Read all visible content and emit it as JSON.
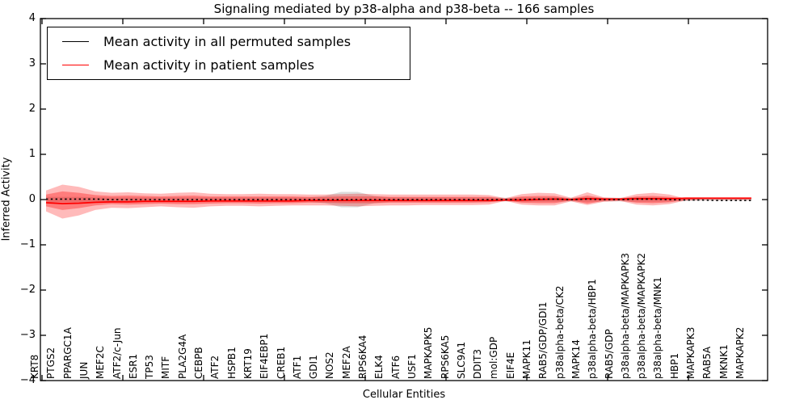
{
  "title": "Signaling mediated by p38-alpha and p38-beta -- 166 samples",
  "axes": {
    "xlabel": "Cellular Entities",
    "ylabel": "Inferred Activity",
    "ytick_values": [
      4,
      3,
      2,
      1,
      0,
      -1,
      -2,
      -3,
      -4
    ],
    "ytick_labels": [
      "4",
      "3",
      "2",
      "1",
      "0",
      "−1",
      "−2",
      "−3",
      "−4"
    ]
  },
  "legend": {
    "position": "upper left",
    "items": [
      {
        "label": "Mean activity in all permuted samples",
        "color": "#000000"
      },
      {
        "label": "Mean activity in patient samples",
        "color": "#ff0000"
      }
    ]
  },
  "colors": {
    "patient_line": "#ff0000",
    "permuted_line": "#000000",
    "patient_band": "#ff0000",
    "permuted_band": "#999999",
    "axis": "#000000",
    "background": "#ffffff"
  },
  "chart_data": {
    "type": "line",
    "title": "Signaling mediated by p38-alpha and p38-beta -- 166 samples",
    "xlabel": "Cellular Entities",
    "ylabel": "Inferred Activity",
    "ylim": [
      -4,
      4
    ],
    "grid": false,
    "legend_position": "upper left",
    "categories": [
      "KRT8",
      "PTGS2",
      "PPARGC1A",
      "JUN",
      "MEF2C",
      "ATF2/c-Jun",
      "ESR1",
      "TP53",
      "MITF",
      "PLA2G4A",
      "CEBPB",
      "ATF2",
      "HSPB1",
      "KRT19",
      "EIF4EBP1",
      "CREB1",
      "ATF1",
      "GDI1",
      "NOS2",
      "MEF2A",
      "RPS6KA4",
      "ELK4",
      "ATF6",
      "USF1",
      "MAPKAPK5",
      "RPS6KA5",
      "SLC9A1",
      "DDIT3",
      "mol:GDP",
      "EIF4E",
      "MAPK11",
      "RAB5/GDP/GDI1",
      "p38alpha-beta/CK2",
      "MAPK14",
      "p38alpha-beta/HBP1",
      "RAB5/GDP",
      "p38alpha-beta/MAPKAPK3",
      "p38alpha-beta/MAPKAPK2",
      "p38alpha-beta/MNK1",
      "HBP1",
      "MAPKAPK3",
      "RAB5A",
      "MKNK1",
      "MAPKAPK2"
    ],
    "series": [
      {
        "name": "Mean activity in all permuted samples",
        "color": "#000000",
        "style": "dotted",
        "values": [
          0.01,
          0.01,
          0.01,
          0.01,
          0.0,
          0.0,
          0.0,
          0.0,
          0.0,
          0.0,
          0.0,
          0.0,
          0.0,
          0.0,
          0.0,
          0.0,
          0.0,
          0.0,
          0.0,
          0.0,
          0.0,
          0.0,
          0.0,
          0.0,
          0.0,
          0.0,
          0.0,
          0.0,
          0.0,
          0.0,
          0.01,
          0.01,
          0.0,
          0.01,
          0.0,
          0.0,
          0.01,
          0.01,
          0.0,
          -0.01,
          -0.01,
          -0.02,
          -0.02,
          -0.02
        ]
      },
      {
        "name": "Mean activity in patient samples",
        "color": "#ff0000",
        "style": "solid",
        "values": [
          -0.07,
          -0.09,
          -0.08,
          -0.06,
          -0.05,
          -0.05,
          -0.04,
          -0.04,
          -0.04,
          -0.04,
          -0.03,
          -0.03,
          -0.03,
          -0.03,
          -0.03,
          -0.03,
          -0.02,
          -0.02,
          -0.02,
          -0.02,
          -0.02,
          -0.02,
          -0.02,
          -0.02,
          -0.02,
          -0.02,
          -0.02,
          -0.02,
          -0.01,
          -0.01,
          0.0,
          0.01,
          0.0,
          0.02,
          0.01,
          0.01,
          0.02,
          0.02,
          0.02,
          0.03,
          0.03,
          0.03,
          0.03,
          0.03
        ]
      }
    ],
    "bands": [
      {
        "name": "permuted-spread-band",
        "color": "#999999",
        "opacity": 0.35,
        "upper": [
          0.06,
          0.06,
          0.06,
          0.05,
          0.05,
          0.05,
          0.05,
          0.05,
          0.05,
          0.05,
          0.05,
          0.05,
          0.05,
          0.05,
          0.05,
          0.05,
          0.05,
          0.08,
          0.17,
          0.17,
          0.08,
          0.05,
          0.05,
          0.05,
          0.05,
          0.05,
          0.05,
          0.05,
          0.04,
          0.05,
          0.05,
          0.05,
          0.04,
          0.05,
          0.04,
          0.04,
          0.05,
          0.05,
          0.04,
          0.03,
          0.02,
          0.02,
          0.02,
          0.02
        ],
        "lower": [
          -0.06,
          -0.06,
          -0.06,
          -0.05,
          -0.05,
          -0.05,
          -0.05,
          -0.05,
          -0.05,
          -0.05,
          -0.05,
          -0.05,
          -0.05,
          -0.05,
          -0.05,
          -0.05,
          -0.05,
          -0.08,
          -0.17,
          -0.17,
          -0.08,
          -0.05,
          -0.05,
          -0.05,
          -0.05,
          -0.05,
          -0.05,
          -0.05,
          -0.04,
          -0.05,
          -0.05,
          -0.05,
          -0.04,
          -0.05,
          -0.04,
          -0.04,
          -0.05,
          -0.05,
          -0.04,
          -0.03,
          -0.02,
          -0.02,
          -0.02,
          -0.02
        ]
      },
      {
        "name": "patient-outer-band",
        "color": "#ff0000",
        "opacity": 0.27,
        "upper": [
          0.2,
          0.33,
          0.28,
          0.18,
          0.15,
          0.16,
          0.14,
          0.13,
          0.15,
          0.16,
          0.13,
          0.12,
          0.12,
          0.13,
          0.12,
          0.12,
          0.11,
          0.11,
          0.12,
          0.13,
          0.12,
          0.11,
          0.11,
          0.11,
          0.11,
          0.11,
          0.11,
          0.1,
          0.03,
          0.12,
          0.15,
          0.14,
          0.04,
          0.16,
          0.05,
          0.03,
          0.12,
          0.15,
          0.11,
          0.02,
          0.01,
          0.01,
          0.01,
          0.01
        ],
        "lower": [
          -0.26,
          -0.42,
          -0.35,
          -0.23,
          -0.18,
          -0.19,
          -0.17,
          -0.15,
          -0.17,
          -0.18,
          -0.15,
          -0.14,
          -0.14,
          -0.15,
          -0.14,
          -0.13,
          -0.13,
          -0.13,
          -0.14,
          -0.15,
          -0.14,
          -0.13,
          -0.13,
          -0.12,
          -0.12,
          -0.12,
          -0.12,
          -0.11,
          -0.03,
          -0.11,
          -0.13,
          -0.13,
          -0.04,
          -0.12,
          -0.05,
          -0.03,
          -0.11,
          -0.13,
          -0.1,
          -0.02,
          -0.01,
          -0.01,
          -0.01,
          -0.01
        ]
      },
      {
        "name": "patient-inner-band",
        "color": "#ff0000",
        "opacity": 0.33,
        "upper": [
          0.11,
          0.18,
          0.15,
          0.1,
          0.08,
          0.09,
          0.08,
          0.07,
          0.08,
          0.09,
          0.07,
          0.07,
          0.07,
          0.07,
          0.07,
          0.07,
          0.06,
          0.06,
          0.07,
          0.07,
          0.07,
          0.06,
          0.06,
          0.06,
          0.06,
          0.06,
          0.06,
          0.06,
          0.02,
          0.07,
          0.08,
          0.08,
          0.02,
          0.09,
          0.03,
          0.02,
          0.07,
          0.08,
          0.06,
          0.01,
          0.0,
          0.0,
          0.0,
          0.0
        ],
        "lower": [
          -0.15,
          -0.23,
          -0.19,
          -0.13,
          -0.1,
          -0.11,
          -0.1,
          -0.09,
          -0.1,
          -0.1,
          -0.09,
          -0.08,
          -0.08,
          -0.09,
          -0.08,
          -0.08,
          -0.07,
          -0.07,
          -0.08,
          -0.08,
          -0.08,
          -0.07,
          -0.07,
          -0.07,
          -0.07,
          -0.07,
          -0.07,
          -0.06,
          -0.02,
          -0.07,
          -0.08,
          -0.08,
          -0.02,
          -0.09,
          -0.03,
          -0.02,
          -0.07,
          -0.08,
          -0.06,
          -0.01,
          0.0,
          0.0,
          0.0,
          0.0
        ]
      }
    ]
  }
}
